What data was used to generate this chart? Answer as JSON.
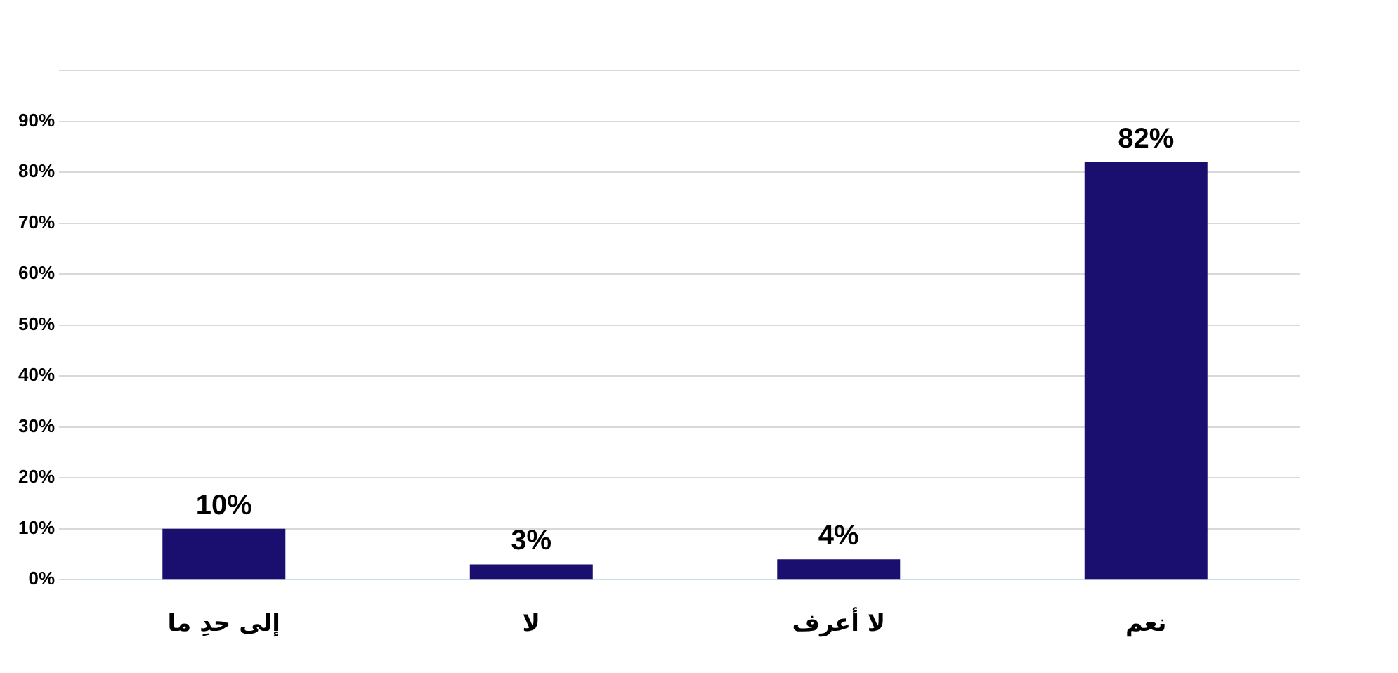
{
  "chart_data": {
    "type": "bar",
    "categories": [
      "إلى حدِ ما",
      "لا",
      "لا أعرف",
      "نعم"
    ],
    "values": [
      10,
      3,
      4,
      82
    ],
    "value_labels": [
      "10%",
      "3%",
      "4%",
      "82%"
    ],
    "color": "#1a0f6e",
    "ylim": [
      0,
      100
    ],
    "yticks": [
      {
        "value": 0,
        "label": "0%"
      },
      {
        "value": 10,
        "label": "10%"
      },
      {
        "value": 20,
        "label": "20%"
      },
      {
        "value": 30,
        "label": "30%"
      },
      {
        "value": 40,
        "label": "40%"
      },
      {
        "value": 50,
        "label": "50%"
      },
      {
        "value": 60,
        "label": "60%"
      },
      {
        "value": 70,
        "label": "70%"
      },
      {
        "value": 80,
        "label": "80%"
      },
      {
        "value": 90,
        "label": "90%"
      },
      {
        "value": 100,
        "label": null
      }
    ],
    "grid": "y"
  }
}
